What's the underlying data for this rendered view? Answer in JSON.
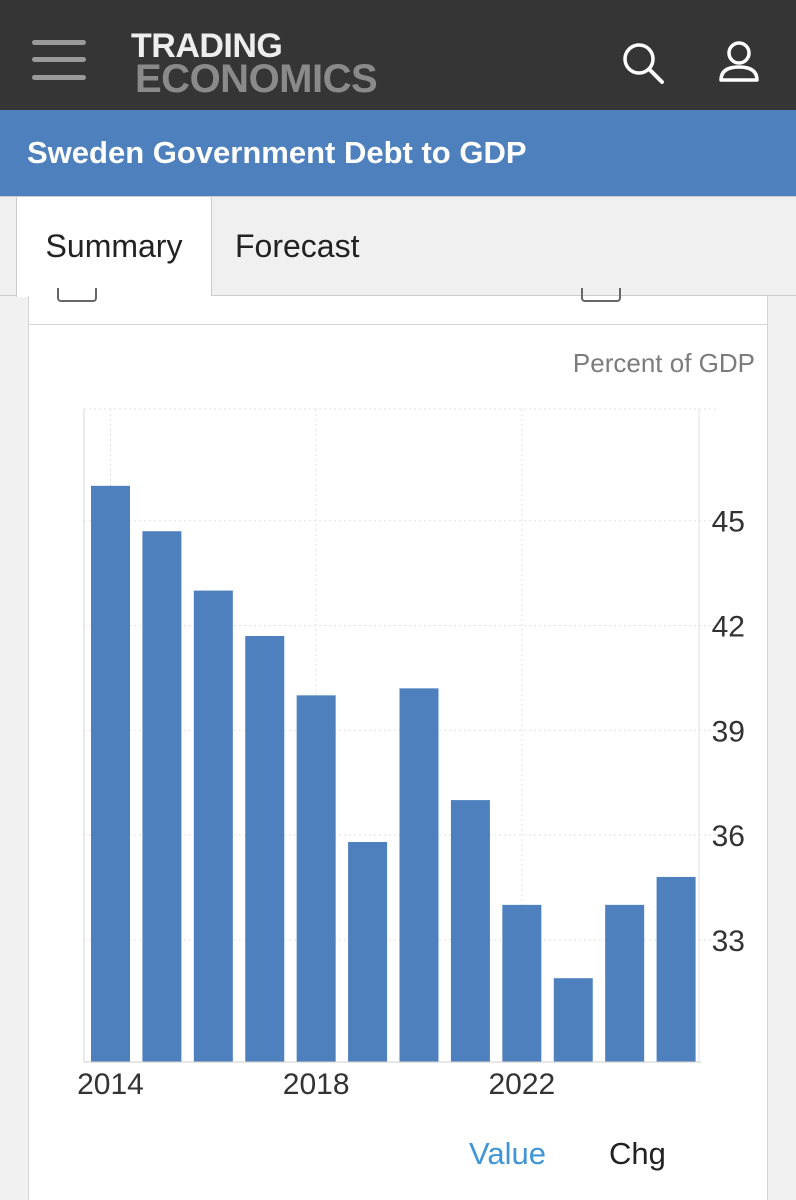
{
  "header": {
    "logo_line1": "TRADING",
    "logo_line2": "ECONOMICS",
    "menu_icon": "hamburger-menu-icon",
    "search_icon": "search-icon",
    "user_icon": "user-icon"
  },
  "page": {
    "title": "Sweden Government Debt to GDP"
  },
  "tabs": [
    {
      "label": "Summary",
      "active": true
    },
    {
      "label": "Forecast",
      "active": false
    }
  ],
  "chart_card": {
    "unit_label": "Percent of GDP",
    "legend": {
      "value_label": "Value",
      "chg_label": "Chg"
    },
    "colors": {
      "bar": "#4e80bd",
      "accent": "#3f95d8"
    }
  },
  "chart_data": {
    "type": "bar",
    "title": "Sweden Government Debt to GDP",
    "ylabel": "Percent of GDP",
    "xlabel": "",
    "categories": [
      "2014",
      "2015",
      "2016",
      "2017",
      "2018",
      "2019",
      "2020",
      "2021",
      "2022",
      "2023",
      "2024",
      "2025"
    ],
    "values": [
      46.0,
      44.7,
      43.0,
      41.7,
      40.0,
      35.8,
      40.2,
      37.0,
      34.0,
      31.9,
      34.0,
      34.8
    ],
    "ylim": [
      29.5,
      48.2
    ],
    "y_ticks": [
      33,
      36,
      39,
      42,
      45
    ],
    "x_tick_labels": [
      "2014",
      "2018",
      "2022"
    ],
    "grid": true,
    "legend": "bottom-right"
  }
}
